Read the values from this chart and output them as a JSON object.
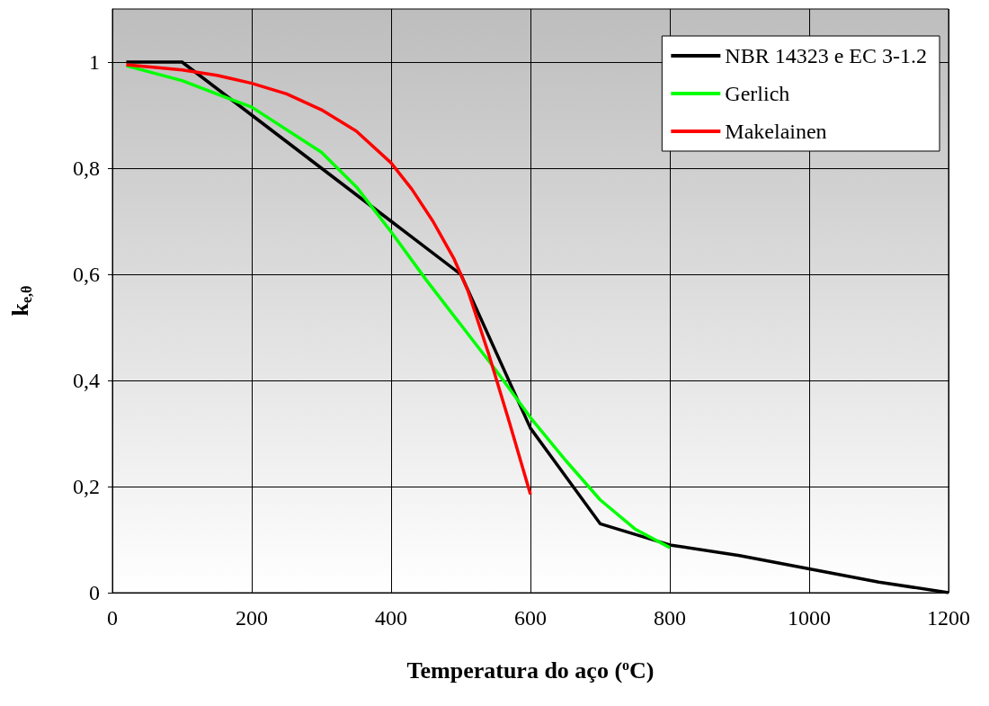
{
  "chart_data": {
    "type": "line",
    "xlabel": "Temperatura do aço ($^{o}$C)",
    "ylabel": "k$_{e,θ}$",
    "xlim": [
      0,
      1200
    ],
    "xticks": [
      0,
      200,
      400,
      600,
      800,
      1000,
      1200
    ],
    "ylim": [
      0,
      1.1
    ],
    "yticks": [
      0,
      {
        "value": 0.2,
        "label": "0,2"
      },
      {
        "value": 0.4,
        "label": "0,4"
      },
      {
        "value": 0.6,
        "label": "0,6"
      },
      {
        "value": 0.8,
        "label": "0,8"
      },
      1
    ],
    "grid": true,
    "legend": "top right",
    "marker": "none",
    "line_style": "solid",
    "series": [
      {
        "name": "NBR 14323 e EC 3-1.2",
        "color": "#000000",
        "x": [
          20,
          100,
          200,
          300,
          400,
          500,
          600,
          700,
          800,
          900,
          1000,
          1100,
          1200
        ],
        "values": [
          1,
          1,
          0.9,
          0.8,
          0.7,
          0.6,
          0.31,
          0.13,
          0.09,
          0.07,
          0.045,
          0.02,
          0
        ]
      },
      {
        "name": "Gerlich",
        "color": "#00ff00",
        "x": [
          20,
          100,
          200,
          300,
          350,
          400,
          450,
          500,
          550,
          600,
          650,
          700,
          750,
          800
        ],
        "values": [
          0.993,
          0.965,
          0.915,
          0.83,
          0.765,
          0.68,
          0.59,
          0.505,
          0.42,
          0.33,
          0.25,
          0.175,
          0.12,
          0.085
        ]
      },
      {
        "name": "Makelainen",
        "color": "#ff0000",
        "x": [
          20,
          100,
          150,
          200,
          250,
          300,
          350,
          400,
          430,
          460,
          490,
          510,
          540,
          570,
          600
        ],
        "values": [
          0.995,
          0.985,
          0.975,
          0.96,
          0.94,
          0.91,
          0.87,
          0.81,
          0.76,
          0.7,
          0.63,
          0.57,
          0.45,
          0.32,
          0.185
        ]
      }
    ]
  }
}
